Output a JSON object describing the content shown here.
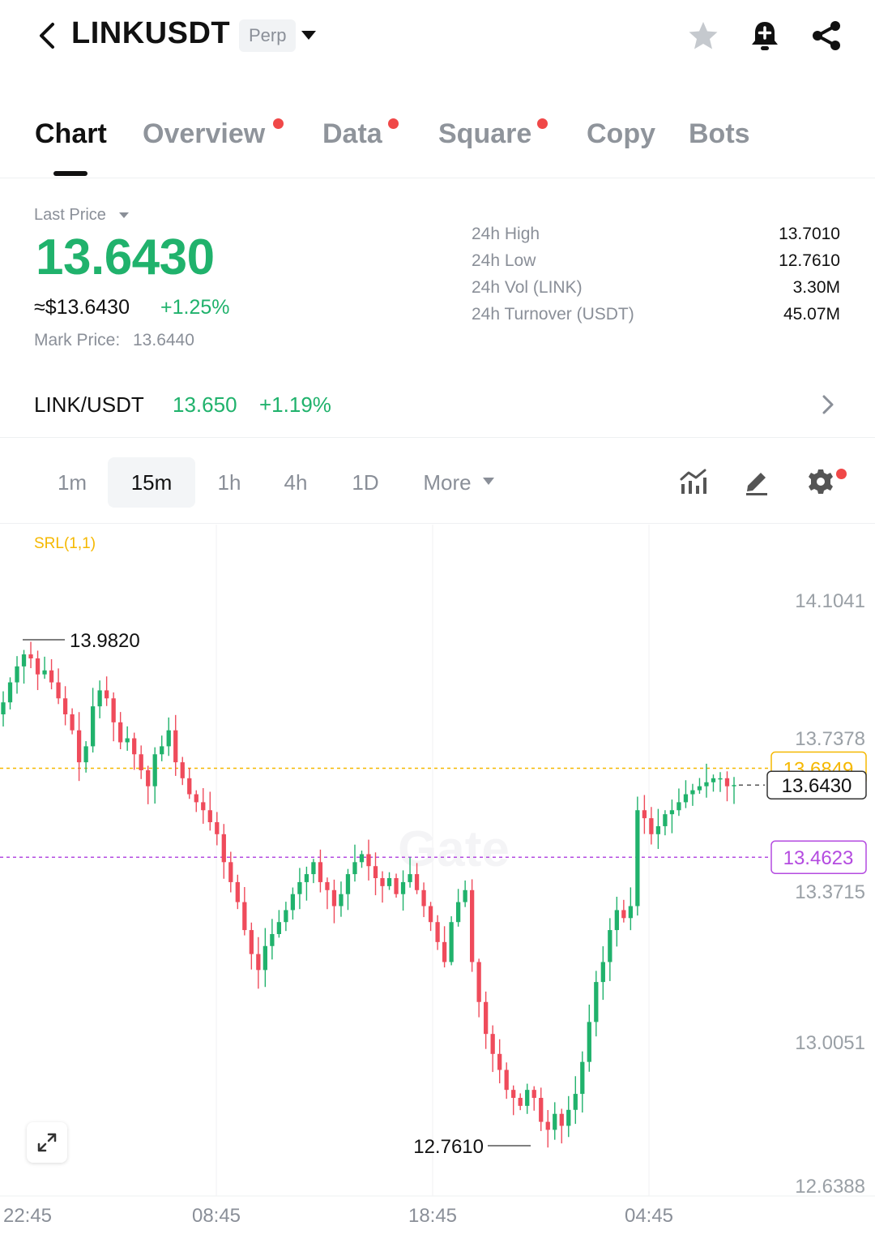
{
  "header": {
    "symbol": "LINKUSDT",
    "contract_type": "Perp"
  },
  "tabs": [
    {
      "label": "Chart",
      "active": true,
      "dot": false
    },
    {
      "label": "Overview",
      "active": false,
      "dot": true
    },
    {
      "label": "Data",
      "active": false,
      "dot": true
    },
    {
      "label": "Square",
      "active": false,
      "dot": true
    },
    {
      "label": "Copy",
      "active": false,
      "dot": false
    },
    {
      "label": "Bots",
      "active": false,
      "dot": false
    }
  ],
  "price": {
    "label": "Last Price",
    "last": "13.6430",
    "usd": "≈$13.6430",
    "change": "+1.25%",
    "mark_label": "Mark Price:",
    "mark_value": "13.6440"
  },
  "stats": [
    {
      "label": "24h High",
      "value": "13.7010"
    },
    {
      "label": "24h Low",
      "value": "12.7610"
    },
    {
      "label": "24h Vol (LINK)",
      "value": "3.30M"
    },
    {
      "label": "24h Turnover (USDT)",
      "value": "45.07M"
    }
  ],
  "spot": {
    "pair": "LINK/USDT",
    "price": "13.650",
    "change": "+1.19%"
  },
  "intervals": {
    "items": [
      "1m",
      "15m",
      "1h",
      "4h",
      "1D"
    ],
    "active": "15m",
    "more_label": "More"
  },
  "colors": {
    "up": "#20b26c",
    "down": "#ef4b5b",
    "srl_orange": "#f5b800",
    "srl_purple": "#b44be0"
  },
  "chart_data": {
    "type": "candlestick",
    "indicator_label": "SRL(1,1)",
    "interval": "15m",
    "y_tick_labels": [
      "14.1041",
      "13.7378",
      "13.3715",
      "13.0051",
      "12.6388"
    ],
    "ylim": [
      12.6388,
      14.1041
    ],
    "x_tick_labels": [
      "22:45",
      "08:45",
      "18:45",
      "04:45"
    ],
    "annotations": {
      "high": "13.9820",
      "low": "12.7610"
    },
    "levels": [
      {
        "name": "srl_upper",
        "value": 13.6849,
        "label": "13.6849",
        "color": "#f5b800"
      },
      {
        "name": "srl_lower",
        "value": 13.4623,
        "label": "13.4623",
        "color": "#b44be0"
      },
      {
        "name": "last",
        "value": 13.643,
        "label": "13.6430",
        "color": "#111111"
      }
    ],
    "close_series": [
      13.85,
      13.9,
      13.94,
      13.97,
      13.96,
      13.92,
      13.93,
      13.9,
      13.86,
      13.82,
      13.78,
      13.7,
      13.74,
      13.84,
      13.88,
      13.86,
      13.8,
      13.75,
      13.76,
      13.72,
      13.68,
      13.64,
      13.72,
      13.74,
      13.78,
      13.7,
      13.66,
      13.62,
      13.6,
      13.58,
      13.55,
      13.52,
      13.45,
      13.4,
      13.35,
      13.28,
      13.22,
      13.18,
      13.24,
      13.27,
      13.3,
      13.33,
      13.37,
      13.4,
      13.42,
      13.45,
      13.4,
      13.38,
      13.34,
      13.37,
      13.42,
      13.45,
      13.47,
      13.44,
      13.41,
      13.39,
      13.41,
      13.37,
      13.4,
      13.42,
      13.38,
      13.34,
      13.3,
      13.25,
      13.2,
      13.3,
      13.35,
      13.38,
      13.2,
      13.1,
      13.02,
      12.97,
      12.93,
      12.88,
      12.86,
      12.84,
      12.88,
      12.86,
      12.8,
      12.78,
      12.82,
      12.79,
      12.83,
      12.87,
      12.95,
      13.05,
      13.15,
      13.2,
      13.28,
      13.33,
      13.31,
      13.34,
      13.58,
      13.56,
      13.52,
      13.54,
      13.57,
      13.58,
      13.6,
      13.62,
      13.63,
      13.64,
      13.65,
      13.66,
      13.66,
      13.64,
      13.643
    ]
  }
}
